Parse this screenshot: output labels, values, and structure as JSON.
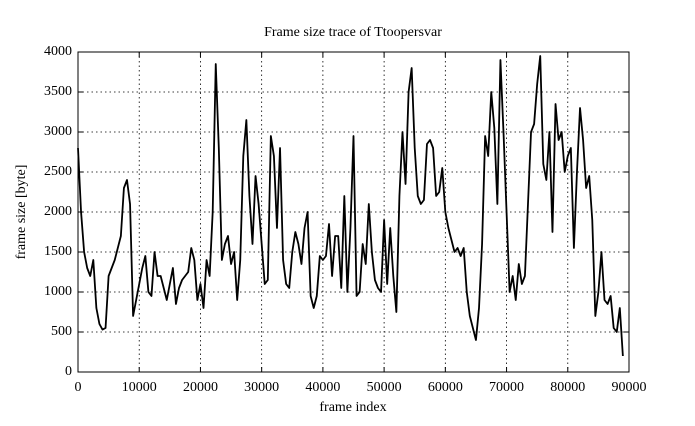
{
  "chart_data": {
    "type": "line",
    "title": "Frame size trace of Ttoopersvar",
    "x_label": "frame index",
    "y_label": "frame size [byte]",
    "color": "#000000",
    "grid": true,
    "xlim": [
      0,
      90000
    ],
    "ylim": [
      0,
      4000
    ],
    "xticks": [
      0,
      10000,
      20000,
      30000,
      40000,
      50000,
      60000,
      70000,
      80000,
      90000
    ],
    "yticks": [
      0,
      500,
      1000,
      1500,
      2000,
      2500,
      3000,
      3500,
      4000
    ],
    "x": [
      0,
      500,
      1000,
      1500,
      2000,
      2500,
      3000,
      3500,
      4000,
      4500,
      5000,
      6000,
      7000,
      7500,
      8000,
      8500,
      9000,
      9500,
      10000,
      10500,
      11000,
      11500,
      12000,
      12500,
      13000,
      13500,
      14000,
      14500,
      15000,
      15500,
      16000,
      16500,
      17000,
      17500,
      18000,
      18500,
      19000,
      19500,
      20000,
      20500,
      21000,
      21500,
      22000,
      22500,
      23000,
      23500,
      24000,
      24500,
      25000,
      25500,
      26000,
      26500,
      27000,
      27500,
      28000,
      28500,
      29000,
      29500,
      30000,
      30500,
      31000,
      31500,
      32000,
      32500,
      33000,
      33500,
      34000,
      34500,
      35000,
      35500,
      36000,
      36500,
      37000,
      37500,
      38000,
      38500,
      39000,
      39500,
      40000,
      40500,
      41000,
      41500,
      42000,
      42500,
      43000,
      43500,
      44000,
      44500,
      45000,
      45500,
      46000,
      46500,
      47000,
      47500,
      48000,
      48500,
      49000,
      49500,
      50000,
      50500,
      51000,
      51500,
      52000,
      52500,
      53000,
      53500,
      54000,
      54500,
      55000,
      55500,
      56000,
      56500,
      57000,
      57500,
      58000,
      58500,
      59000,
      59500,
      60000,
      60500,
      61000,
      61500,
      62000,
      62500,
      63000,
      63500,
      64000,
      64500,
      65000,
      65500,
      66000,
      66500,
      67000,
      67500,
      68000,
      68500,
      69000,
      69500,
      70000,
      70500,
      71000,
      71500,
      72000,
      72500,
      73000,
      73500,
      74000,
      74500,
      75000,
      75500,
      76000,
      76500,
      77000,
      77500,
      78000,
      78500,
      79000,
      79500,
      80000,
      80500,
      81000,
      81500,
      82000,
      82500,
      83000,
      83500,
      84000,
      84500,
      85000,
      85500,
      86000,
      86500,
      87000,
      87500,
      88000,
      88500,
      89000
    ],
    "values": [
      2800,
      2000,
      1500,
      1300,
      1200,
      1400,
      800,
      600,
      530,
      550,
      1200,
      1400,
      1700,
      2300,
      2400,
      2100,
      700,
      900,
      1100,
      1300,
      1450,
      1000,
      950,
      1500,
      1200,
      1200,
      1050,
      900,
      1100,
      1300,
      850,
      1050,
      1150,
      1200,
      1250,
      1550,
      1400,
      900,
      1100,
      800,
      1400,
      1200,
      2000,
      3850,
      2800,
      1400,
      1600,
      1700,
      1350,
      1500,
      900,
      1400,
      2700,
      3150,
      2200,
      1600,
      2450,
      2100,
      1600,
      1100,
      1150,
      2950,
      2700,
      1800,
      2800,
      1400,
      1100,
      1050,
      1500,
      1750,
      1600,
      1350,
      1800,
      2000,
      950,
      800,
      950,
      1450,
      1400,
      1450,
      1850,
      1200,
      1700,
      1700,
      1050,
      2200,
      1000,
      1800,
      2950,
      950,
      1000,
      1600,
      1350,
      2100,
      1500,
      1150,
      1050,
      1000,
      1900,
      1100,
      1800,
      1200,
      750,
      2200,
      3000,
      2350,
      3500,
      3800,
      2800,
      2200,
      2100,
      2150,
      2850,
      2900,
      2800,
      2200,
      2250,
      2550,
      2000,
      1800,
      1650,
      1500,
      1550,
      1450,
      1550,
      1000,
      700,
      550,
      400,
      800,
      1600,
      2950,
      2700,
      3500,
      3050,
      2100,
      3900,
      3000,
      2000,
      1000,
      1200,
      900,
      1350,
      1100,
      1200,
      2100,
      3000,
      3100,
      3600,
      3950,
      2600,
      2400,
      3000,
      1750,
      3350,
      2900,
      3000,
      2500,
      2700,
      2800,
      1550,
      2500,
      3300,
      2900,
      2300,
      2450,
      1900,
      700,
      1000,
      1500,
      900,
      850,
      950,
      550,
      500,
      800,
      200
    ]
  }
}
